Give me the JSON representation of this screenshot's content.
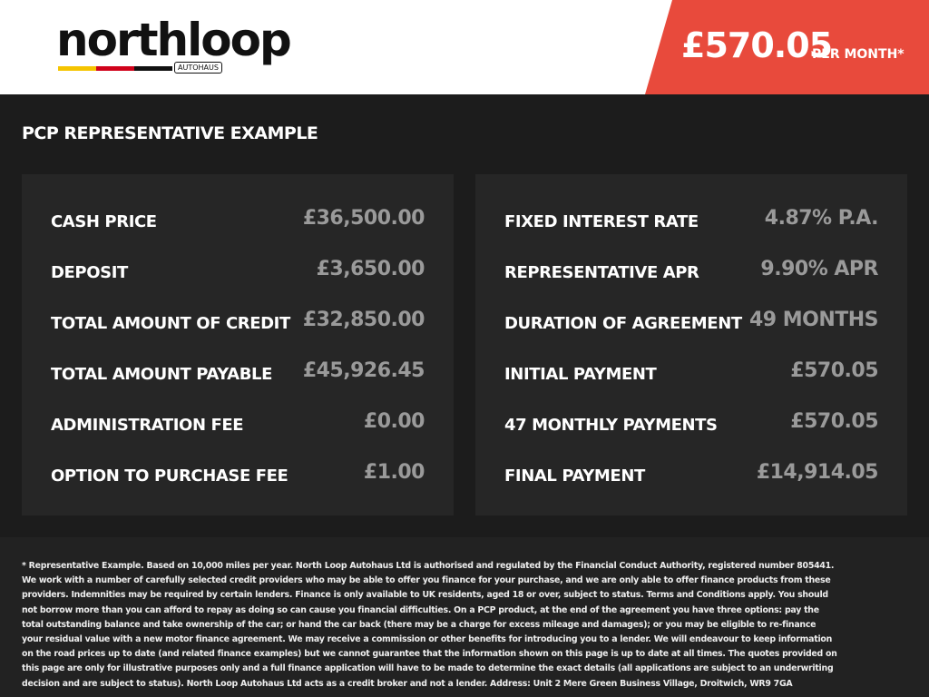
{
  "header": {
    "logo": "northloop",
    "logo_sub": "AUTOHAUS",
    "price": "£570.05",
    "price_suffix": "PER MONTH*"
  },
  "section_title": "PCP REPRESENTATIVE EXAMPLE",
  "left_panel": {
    "rows": [
      [
        "CASH PRICE",
        "£36,500.00"
      ],
      [
        "DEPOSIT",
        "£3,650.00"
      ],
      [
        "TOTAL AMOUNT OF CREDIT",
        "£32,850.00"
      ],
      [
        "TOTAL AMOUNT PAYABLE",
        "£45,926.45"
      ],
      [
        "ADMINISTRATION FEE",
        "£0.00"
      ],
      [
        "OPTION TO PURCHASE FEE",
        "£1.00"
      ]
    ]
  },
  "right_panel": {
    "rows": [
      [
        "FIXED INTEREST RATE",
        "4.87% P.A."
      ],
      [
        "REPRESENTATIVE APR",
        "9.90% APR"
      ],
      [
        "DURATION OF AGREEMENT",
        "49 MONTHS"
      ],
      [
        "INITIAL PAYMENT",
        "£570.05"
      ],
      [
        "47 MONTHLY PAYMENTS",
        "£570.05"
      ],
      [
        "FINAL PAYMENT",
        "£14,914.05"
      ]
    ]
  },
  "disclaimer": "* Representative Example. Based on 10,000 miles per year. North Loop Autohaus Ltd is authorised and regulated by the Financial Conduct Authority, registered number 805441. We work with a number of carefully selected credit providers who may be able to offer you finance for your purchase, and we are only able to offer finance products from these providers. Indemnities may be required by certain lenders. Finance is only available to UK residents, aged 18 or over, subject to status. Terms and Conditions apply. You should not borrow more than you can afford to repay as doing so can cause you financial difficulties. On a PCP product, at the end of the agreement you have three options: pay the total outstanding balance and take ownership of the car; or hand the car back (there may be a charge for excess mileage and damages); or you may be eligible to re-finance your residual value with a new motor finance agreement. We may receive a commission or other benefits for introducing you to a lender. We will endeavour to keep information on the road prices up to date (and related finance examples) but we cannot guarantee that the information shown on this page is up to date at all times. The quotes provided on this page are only for illustrative purposes only and a full finance application will have to be made to determine the exact details (all applications are subject to an underwriting decision and are subject to status). North Loop Autohaus Ltd acts as a credit broker and not a lender. Address: Unit 2 Mere Green Business Village, Droitwich, WR9 7GA"
}
